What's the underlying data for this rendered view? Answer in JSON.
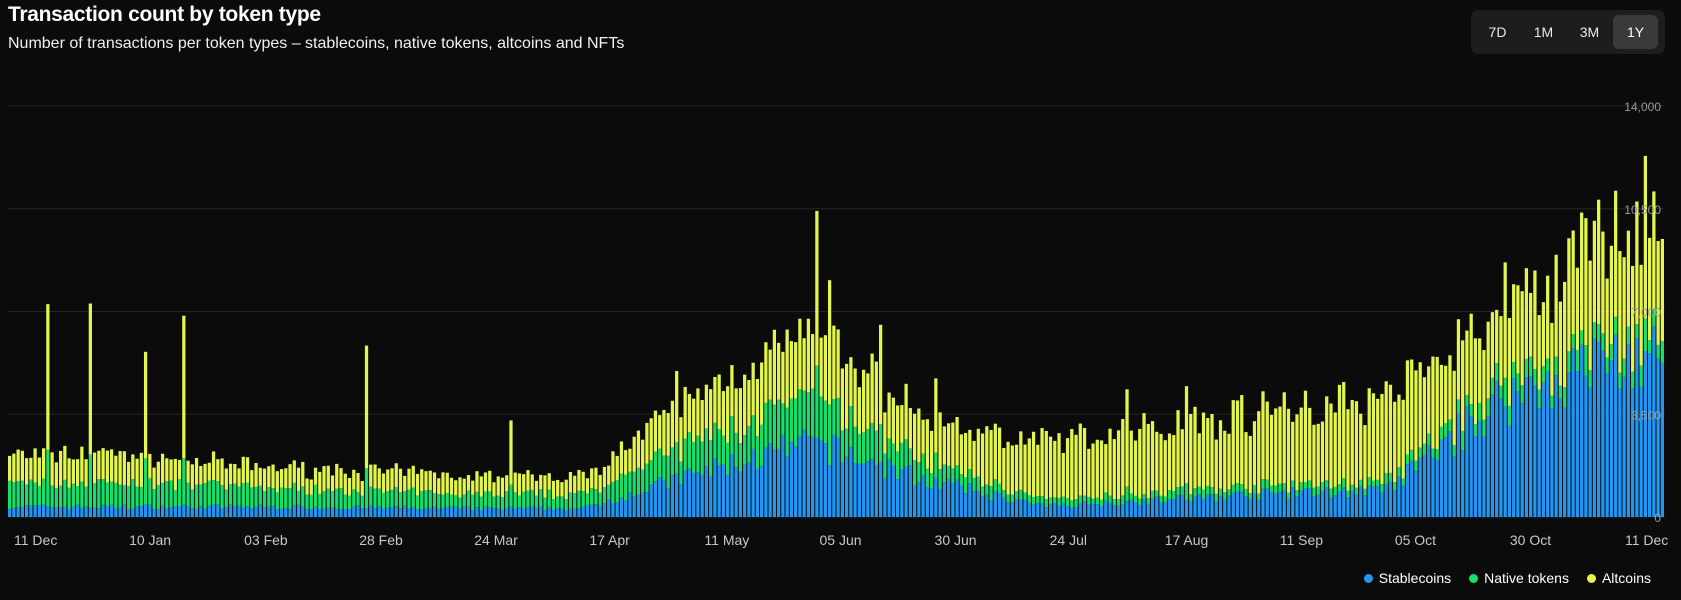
{
  "header": {
    "title": "Transaction count by token type",
    "subtitle": "Number of transactions per token types – stablecoins, native tokens, altcoins and NFTs"
  },
  "range_selector": {
    "options": [
      "7D",
      "1M",
      "3M",
      "1Y"
    ],
    "selected": "1Y"
  },
  "colors": {
    "stablecoins": "#2196f3",
    "native": "#16e06b",
    "altcoins": "#e4f54c",
    "grid": "#262626",
    "tick_text": "#9a9a9a",
    "axis_text": "#c8c8c8"
  },
  "chart_data": {
    "type": "bar",
    "stacked": true,
    "x_tick_labels": [
      "11 Dec",
      "10 Jan",
      "03 Feb",
      "28 Feb",
      "24 Mar",
      "17 Apr",
      "11 May",
      "05 Jun",
      "30 Jun",
      "24 Jul",
      "17 Aug",
      "11 Sep",
      "05 Oct",
      "30 Oct",
      "11 Dec"
    ],
    "y_ticks": [
      0,
      3500,
      7000,
      10500,
      14000
    ],
    "y_tick_labels": [
      "0",
      "3,500",
      "7,000",
      "10,500",
      "14,000"
    ],
    "ylim": [
      0,
      14000
    ],
    "grid": true,
    "legend_position": "bottom-right",
    "series": [
      {
        "name": "Stablecoins",
        "color": "#2196f3"
      },
      {
        "name": "Native tokens",
        "color": "#16e06b"
      },
      {
        "name": "Altcoins",
        "color": "#e4f54c"
      }
    ],
    "periods": [
      {
        "bars": 27,
        "stable": [
          250,
          450
        ],
        "native": [
          600,
          1000
        ],
        "alt": [
          700,
          1200
        ],
        "spikes": [
          [
            9,
            3800
          ],
          [
            19,
            4200
          ],
          [
            28,
            3000
          ]
        ]
      },
      {
        "bars": 27,
        "stable": [
          250,
          450
        ],
        "native": [
          650,
          1000
        ],
        "alt": [
          800,
          1200
        ],
        "spikes": [
          [
            5,
            2500
          ],
          [
            14,
            3800
          ]
        ]
      },
      {
        "bars": 27,
        "stable": [
          250,
          450
        ],
        "native": [
          500,
          850
        ],
        "alt": [
          550,
          900
        ]
      },
      {
        "bars": 27,
        "stable": [
          250,
          400
        ],
        "native": [
          400,
          750
        ],
        "alt": [
          550,
          800
        ],
        "spikes": [
          [
            3,
            3600
          ]
        ]
      },
      {
        "bars": 27,
        "stable": [
          200,
          380
        ],
        "native": [
          350,
          650
        ],
        "alt": [
          500,
          750
        ],
        "spikes": [
          [
            10,
            1500
          ]
        ]
      },
      {
        "bars": 27,
        "stable": [
          200,
          380
        ],
        "native": [
          350,
          600
        ],
        "alt": [
          450,
          800
        ],
        "spikes": [
          [
            22,
            1200
          ]
        ]
      },
      {
        "bars": 27,
        "stable": [
          800,
          2200
        ],
        "native": [
          900,
          1300
        ],
        "alt": [
          1200,
          2000
        ]
      },
      {
        "bars": 27,
        "stable": [
          2000,
          3000
        ],
        "native": [
          1200,
          1800
        ],
        "alt": [
          1500,
          3300
        ],
        "spikes": [
          [
            1,
            2500
          ],
          [
            4,
            1800
          ],
          [
            16,
            1400
          ]
        ]
      },
      {
        "bars": 27,
        "stable": [
          700,
          1800
        ],
        "native": [
          400,
          800
        ],
        "alt": [
          1200,
          1800
        ],
        "spikes": [
          [
            2,
            900
          ]
        ]
      },
      {
        "bars": 27,
        "stable": [
          300,
          450
        ],
        "native": [
          150,
          300
        ],
        "alt": [
          1600,
          2200
        ],
        "spikes": [
          [
            20,
            1200
          ]
        ]
      },
      {
        "bars": 27,
        "stable": [
          500,
          650
        ],
        "native": [
          200,
          300
        ],
        "alt": [
          2000,
          2600
        ],
        "spikes": [
          [
            7,
            1200
          ]
        ]
      },
      {
        "bars": 27,
        "stable": [
          700,
          900
        ],
        "native": [
          200,
          350
        ],
        "alt": [
          2200,
          3000
        ]
      },
      {
        "bars": 27,
        "stable": [
          800,
          1000
        ],
        "native": [
          200,
          300
        ],
        "alt": [
          2400,
          3300
        ],
        "spikes": [
          [
            0,
            800
          ],
          [
            18,
            900
          ]
        ]
      },
      {
        "bars": 27,
        "stable": [
          3200,
          4800
        ],
        "native": [
          400,
          700
        ],
        "alt": [
          1800,
          3000
        ],
        "spikes": [
          [
            1,
            1500
          ],
          [
            20,
            1800
          ]
        ]
      },
      {
        "bars": 12,
        "stable": [
          4800,
          6000
        ],
        "native": [
          400,
          800
        ],
        "alt": [
          2200,
          5000
        ],
        "spikes": [
          [
            7,
            2000
          ]
        ]
      }
    ]
  },
  "legend": {
    "items": [
      {
        "label": "Stablecoins",
        "color": "#2196f3"
      },
      {
        "label": "Native tokens",
        "color": "#16e06b"
      },
      {
        "label": "Altcoins",
        "color": "#e4f54c"
      }
    ]
  }
}
